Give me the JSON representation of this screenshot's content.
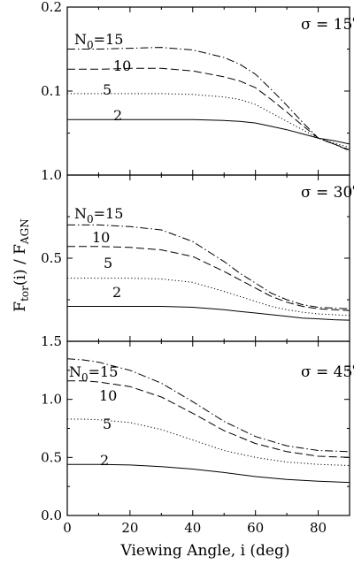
{
  "figure": {
    "xlabel": "Viewing Angle, i (deg)",
    "ylabel": "F_tor(i) / F_AGN"
  },
  "chart_data": [
    {
      "type": "line",
      "title": "σ = 15°",
      "panel_label": {
        "symbol": "σ",
        "text": " = 15",
        "sup": "o"
      },
      "xlim": [
        0,
        90
      ],
      "ylim": [
        0,
        0.2
      ],
      "xticks": [
        0,
        20,
        40,
        60,
        80
      ],
      "yticks": [
        0,
        0.1,
        0.2
      ],
      "ytick_labels": [
        "",
        "0.1",
        "0.2"
      ],
      "grid": false,
      "series": [
        {
          "name": "N0=15",
          "label_parts": [
            "N",
            "0",
            "=15"
          ],
          "style": "dashdot",
          "x": [
            0,
            10,
            20,
            30,
            40,
            50,
            55,
            60,
            65,
            70,
            75,
            80,
            85,
            90
          ],
          "y": [
            0.15,
            0.15,
            0.151,
            0.152,
            0.149,
            0.14,
            0.132,
            0.12,
            0.102,
            0.083,
            0.063,
            0.044,
            0.037,
            0.029
          ]
        },
        {
          "name": "10",
          "label_parts": [
            "10"
          ],
          "style": "dashed",
          "x": [
            0,
            10,
            20,
            30,
            40,
            50,
            55,
            60,
            65,
            70,
            75,
            80,
            85,
            90
          ],
          "y": [
            0.126,
            0.126,
            0.127,
            0.127,
            0.124,
            0.117,
            0.112,
            0.104,
            0.09,
            0.075,
            0.059,
            0.044,
            0.037,
            0.03
          ]
        },
        {
          "name": "5",
          "label_parts": [
            "5"
          ],
          "style": "dotted",
          "x": [
            0,
            10,
            20,
            30,
            40,
            50,
            55,
            60,
            65,
            70,
            75,
            80,
            85,
            90
          ],
          "y": [
            0.097,
            0.097,
            0.097,
            0.097,
            0.096,
            0.093,
            0.09,
            0.084,
            0.074,
            0.064,
            0.054,
            0.044,
            0.038,
            0.033
          ]
        },
        {
          "name": "2",
          "label_parts": [
            "2"
          ],
          "style": "solid",
          "x": [
            0,
            10,
            20,
            30,
            40,
            50,
            55,
            60,
            65,
            70,
            75,
            80,
            85,
            90
          ],
          "y": [
            0.066,
            0.066,
            0.066,
            0.066,
            0.066,
            0.065,
            0.064,
            0.062,
            0.058,
            0.054,
            0.049,
            0.044,
            0.041,
            0.037
          ]
        }
      ]
    },
    {
      "type": "line",
      "title": "σ = 30°",
      "panel_label": {
        "symbol": "σ",
        "text": " = 30",
        "sup": "o"
      },
      "xlim": [
        0,
        90
      ],
      "ylim": [
        0,
        1.0
      ],
      "xticks": [
        0,
        20,
        40,
        60,
        80
      ],
      "yticks": [
        0,
        0.5,
        1.0
      ],
      "ytick_labels": [
        "",
        "0.5",
        "1.0"
      ],
      "grid": false,
      "series": [
        {
          "name": "N0=15",
          "label_parts": [
            "N",
            "0",
            "=15"
          ],
          "style": "dashdot",
          "x": [
            0,
            10,
            20,
            30,
            40,
            50,
            55,
            60,
            65,
            70,
            75,
            80,
            85,
            90
          ],
          "y": [
            0.7,
            0.7,
            0.69,
            0.67,
            0.6,
            0.48,
            0.41,
            0.35,
            0.29,
            0.25,
            0.22,
            0.205,
            0.2,
            0.195
          ]
        },
        {
          "name": "10",
          "label_parts": [
            "10"
          ],
          "style": "dashed",
          "x": [
            0,
            10,
            20,
            30,
            40,
            50,
            55,
            60,
            65,
            70,
            75,
            80,
            85,
            90
          ],
          "y": [
            0.57,
            0.57,
            0.565,
            0.55,
            0.51,
            0.42,
            0.37,
            0.32,
            0.27,
            0.235,
            0.21,
            0.195,
            0.19,
            0.185
          ]
        },
        {
          "name": "5",
          "label_parts": [
            "5"
          ],
          "style": "dotted",
          "x": [
            0,
            10,
            20,
            30,
            40,
            50,
            55,
            60,
            65,
            70,
            75,
            80,
            85,
            90
          ],
          "y": [
            0.38,
            0.38,
            0.38,
            0.375,
            0.355,
            0.3,
            0.27,
            0.24,
            0.21,
            0.19,
            0.175,
            0.165,
            0.16,
            0.155
          ]
        },
        {
          "name": "2",
          "label_parts": [
            "2"
          ],
          "style": "solid",
          "x": [
            0,
            10,
            20,
            30,
            40,
            50,
            55,
            60,
            65,
            70,
            75,
            80,
            85,
            90
          ],
          "y": [
            0.21,
            0.21,
            0.21,
            0.21,
            0.205,
            0.19,
            0.18,
            0.17,
            0.16,
            0.15,
            0.14,
            0.135,
            0.13,
            0.127
          ]
        }
      ]
    },
    {
      "type": "line",
      "title": "σ = 45°",
      "panel_label": {
        "symbol": "σ",
        "text": " = 45",
        "sup": "o"
      },
      "xlim": [
        0,
        90
      ],
      "ylim": [
        0,
        1.5
      ],
      "xticks": [
        0,
        20,
        40,
        60,
        80
      ],
      "xtick_labels": [
        "0",
        "20",
        "40",
        "60",
        "80"
      ],
      "yticks": [
        0,
        0.5,
        1.0,
        1.5
      ],
      "ytick_labels": [
        "0.0",
        "0.5",
        "1.0",
        "1.5"
      ],
      "grid": false,
      "series": [
        {
          "name": "N0=15",
          "label_parts": [
            "N",
            "0",
            "=15"
          ],
          "style": "dashdot",
          "x": [
            0,
            5,
            10,
            20,
            30,
            40,
            50,
            60,
            70,
            80,
            90
          ],
          "y": [
            1.35,
            1.34,
            1.32,
            1.25,
            1.14,
            0.98,
            0.81,
            0.68,
            0.6,
            0.56,
            0.55
          ]
        },
        {
          "name": "10",
          "label_parts": [
            "10"
          ],
          "style": "dashed",
          "x": [
            0,
            5,
            10,
            20,
            30,
            40,
            50,
            60,
            70,
            80,
            90
          ],
          "y": [
            1.16,
            1.16,
            1.15,
            1.11,
            1.02,
            0.88,
            0.73,
            0.62,
            0.55,
            0.51,
            0.5
          ]
        },
        {
          "name": "5",
          "label_parts": [
            "5"
          ],
          "style": "dotted",
          "x": [
            0,
            5,
            10,
            20,
            30,
            40,
            50,
            60,
            70,
            80,
            90
          ],
          "y": [
            0.83,
            0.83,
            0.825,
            0.8,
            0.74,
            0.65,
            0.56,
            0.5,
            0.46,
            0.44,
            0.43
          ]
        },
        {
          "name": "2",
          "label_parts": [
            "2"
          ],
          "style": "solid",
          "x": [
            0,
            5,
            10,
            20,
            30,
            40,
            50,
            60,
            70,
            80,
            90
          ],
          "y": [
            0.44,
            0.44,
            0.44,
            0.435,
            0.42,
            0.4,
            0.37,
            0.335,
            0.31,
            0.295,
            0.285
          ]
        }
      ]
    }
  ]
}
